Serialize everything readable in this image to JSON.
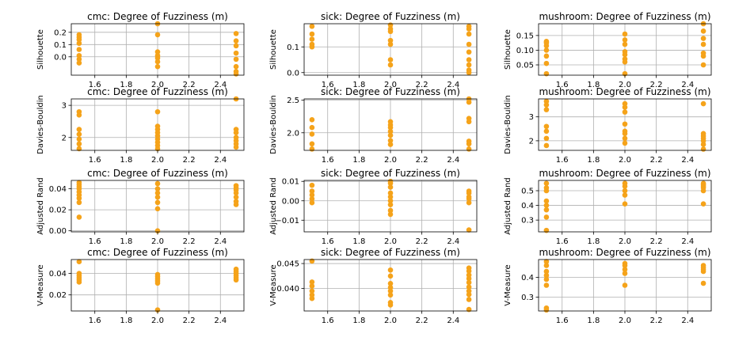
{
  "marker_color": "#f5a31a",
  "x_ticks": [
    1.6,
    1.8,
    2.0,
    2.2,
    2.4
  ],
  "xlim": [
    1.45,
    2.55
  ],
  "chart_data": [
    {
      "type": "scatter",
      "title": "cmc: Degree of Fuzziness (m)",
      "ylabel": "Silhouette",
      "ylim": [
        -0.15,
        0.27
      ],
      "y_ticks": [
        0.0,
        0.1,
        0.2
      ],
      "y_tick_labels": [
        "0.0",
        "0.1",
        "0.2"
      ],
      "points": [
        [
          1.5,
          -0.05
        ],
        [
          1.5,
          -0.02
        ],
        [
          1.5,
          0.01
        ],
        [
          1.5,
          0.06
        ],
        [
          1.5,
          0.11
        ],
        [
          1.5,
          0.14
        ],
        [
          1.5,
          0.16
        ],
        [
          1.5,
          0.18
        ],
        [
          2.0,
          -0.08
        ],
        [
          2.0,
          -0.04
        ],
        [
          2.0,
          -0.01
        ],
        [
          2.0,
          0.01
        ],
        [
          2.0,
          0.04
        ],
        [
          2.0,
          0.18
        ],
        [
          2.0,
          0.27
        ],
        [
          2.5,
          -0.14
        ],
        [
          2.5,
          -0.12
        ],
        [
          2.5,
          -0.08
        ],
        [
          2.5,
          -0.02
        ],
        [
          2.5,
          0.03
        ],
        [
          2.5,
          0.09
        ],
        [
          2.5,
          0.13
        ],
        [
          2.5,
          0.19
        ]
      ]
    },
    {
      "type": "scatter",
      "title": "sick: Degree of Fuzziness (m)",
      "ylabel": "Silhouette",
      "ylim": [
        -0.01,
        0.19
      ],
      "y_ticks": [
        0.0,
        0.1
      ],
      "y_tick_labels": [
        "0.0",
        "0.1"
      ],
      "points": [
        [
          1.5,
          0.1
        ],
        [
          1.5,
          0.11
        ],
        [
          1.5,
          0.13
        ],
        [
          1.5,
          0.15
        ],
        [
          1.5,
          0.18
        ],
        [
          2.0,
          0.03
        ],
        [
          2.0,
          0.05
        ],
        [
          2.0,
          0.11
        ],
        [
          2.0,
          0.125
        ],
        [
          2.0,
          0.16
        ],
        [
          2.0,
          0.17
        ],
        [
          2.0,
          0.185
        ],
        [
          2.5,
          0.0
        ],
        [
          2.5,
          0.01
        ],
        [
          2.5,
          0.03
        ],
        [
          2.5,
          0.05
        ],
        [
          2.5,
          0.08
        ],
        [
          2.5,
          0.11
        ],
        [
          2.5,
          0.15
        ],
        [
          2.5,
          0.17
        ],
        [
          2.5,
          0.18
        ]
      ]
    },
    {
      "type": "scatter",
      "title": "mushroom: Degree of Fuzziness (m)",
      "ylabel": "Silhouette",
      "ylim": [
        0.015,
        0.19
      ],
      "y_ticks": [
        0.05,
        0.1,
        0.15
      ],
      "y_tick_labels": [
        "0.05",
        "0.10",
        "0.15"
      ],
      "points": [
        [
          1.5,
          0.02
        ],
        [
          1.5,
          0.055
        ],
        [
          1.5,
          0.08
        ],
        [
          1.5,
          0.1
        ],
        [
          1.5,
          0.115
        ],
        [
          1.5,
          0.125
        ],
        [
          1.5,
          0.13
        ],
        [
          2.0,
          0.02
        ],
        [
          2.0,
          0.06
        ],
        [
          2.0,
          0.07
        ],
        [
          2.0,
          0.085
        ],
        [
          2.0,
          0.095
        ],
        [
          2.0,
          0.12
        ],
        [
          2.0,
          0.135
        ],
        [
          2.0,
          0.155
        ],
        [
          2.5,
          0.05
        ],
        [
          2.5,
          0.08
        ],
        [
          2.5,
          0.09
        ],
        [
          2.5,
          0.12
        ],
        [
          2.5,
          0.14
        ],
        [
          2.5,
          0.165
        ],
        [
          2.5,
          0.19
        ]
      ]
    },
    {
      "type": "scatter",
      "title": "cmc: Degree of Fuzziness (m)",
      "ylabel": "Davies-Bouldin",
      "ylim": [
        1.6,
        3.2
      ],
      "y_ticks": [
        2,
        3
      ],
      "y_tick_labels": [
        "2",
        "3"
      ],
      "points": [
        [
          1.5,
          1.65
        ],
        [
          1.5,
          1.8
        ],
        [
          1.5,
          1.95
        ],
        [
          1.5,
          2.1
        ],
        [
          1.5,
          2.25
        ],
        [
          1.5,
          2.7
        ],
        [
          1.5,
          2.8
        ],
        [
          2.0,
          1.65
        ],
        [
          2.0,
          1.75
        ],
        [
          2.0,
          1.85
        ],
        [
          2.0,
          1.95
        ],
        [
          2.0,
          2.05
        ],
        [
          2.0,
          2.15
        ],
        [
          2.0,
          2.25
        ],
        [
          2.0,
          2.35
        ],
        [
          2.0,
          2.8
        ],
        [
          2.5,
          1.7
        ],
        [
          2.5,
          1.8
        ],
        [
          2.5,
          1.9
        ],
        [
          2.5,
          2.0
        ],
        [
          2.5,
          2.15
        ],
        [
          2.5,
          2.25
        ],
        [
          2.5,
          3.2
        ]
      ]
    },
    {
      "type": "scatter",
      "title": "sick: Degree of Fuzziness (m)",
      "ylabel": "Davies-Bouldin",
      "ylim": [
        1.73,
        2.52
      ],
      "y_ticks": [
        2.0,
        2.5
      ],
      "y_tick_labels": [
        "2.0",
        "2.5"
      ],
      "points": [
        [
          1.5,
          1.75
        ],
        [
          1.5,
          1.83
        ],
        [
          1.5,
          1.98
        ],
        [
          1.5,
          2.08
        ],
        [
          1.5,
          2.2
        ],
        [
          2.0,
          1.82
        ],
        [
          2.0,
          1.88
        ],
        [
          2.0,
          1.96
        ],
        [
          2.0,
          2.02
        ],
        [
          2.0,
          2.08
        ],
        [
          2.0,
          2.12
        ],
        [
          2.0,
          2.17
        ],
        [
          2.5,
          1.75
        ],
        [
          2.5,
          1.83
        ],
        [
          2.5,
          1.87
        ],
        [
          2.5,
          2.17
        ],
        [
          2.5,
          2.22
        ],
        [
          2.5,
          2.47
        ],
        [
          2.5,
          2.52
        ]
      ]
    },
    {
      "type": "scatter",
      "title": "mushroom: Degree of Fuzziness (m)",
      "ylabel": "Davies-Bouldin",
      "ylim": [
        1.6,
        3.75
      ],
      "y_ticks": [
        2,
        3
      ],
      "y_tick_labels": [
        "2",
        "3"
      ],
      "points": [
        [
          1.5,
          1.8
        ],
        [
          1.5,
          2.1
        ],
        [
          1.5,
          2.4
        ],
        [
          1.5,
          2.6
        ],
        [
          1.5,
          3.3
        ],
        [
          1.5,
          3.5
        ],
        [
          1.5,
          3.65
        ],
        [
          2.0,
          1.9
        ],
        [
          2.0,
          2.1
        ],
        [
          2.0,
          2.3
        ],
        [
          2.0,
          2.4
        ],
        [
          2.0,
          2.7
        ],
        [
          2.0,
          3.2
        ],
        [
          2.0,
          3.4
        ],
        [
          2.0,
          3.55
        ],
        [
          2.5,
          1.65
        ],
        [
          2.5,
          1.85
        ],
        [
          2.5,
          2.0
        ],
        [
          2.5,
          2.1
        ],
        [
          2.5,
          2.2
        ],
        [
          2.5,
          2.3
        ],
        [
          2.5,
          3.55
        ]
      ]
    },
    {
      "type": "scatter",
      "title": "cmc: Degree of Fuzziness (m)",
      "ylabel": "Adjusted Rand",
      "ylim": [
        -0.001,
        0.048
      ],
      "y_ticks": [
        0.0,
        0.02,
        0.04
      ],
      "y_tick_labels": [
        "0.00",
        "0.02",
        "0.04"
      ],
      "points": [
        [
          1.5,
          0.013
        ],
        [
          1.5,
          0.027
        ],
        [
          1.5,
          0.031
        ],
        [
          1.5,
          0.034
        ],
        [
          1.5,
          0.037
        ],
        [
          1.5,
          0.04
        ],
        [
          1.5,
          0.042
        ],
        [
          1.5,
          0.044
        ],
        [
          1.5,
          0.046
        ],
        [
          2.0,
          0.0
        ],
        [
          2.0,
          0.021
        ],
        [
          2.0,
          0.027
        ],
        [
          2.0,
          0.032
        ],
        [
          2.0,
          0.036
        ],
        [
          2.0,
          0.04
        ],
        [
          2.0,
          0.045
        ],
        [
          2.5,
          0.025
        ],
        [
          2.5,
          0.028
        ],
        [
          2.5,
          0.032
        ],
        [
          2.5,
          0.036
        ],
        [
          2.5,
          0.039
        ],
        [
          2.5,
          0.041
        ],
        [
          2.5,
          0.043
        ]
      ]
    },
    {
      "type": "scatter",
      "title": "sick: Degree of Fuzziness (m)",
      "ylabel": "Adjusted Rand",
      "ylim": [
        -0.016,
        0.0105
      ],
      "y_ticks": [
        -0.01,
        0.0,
        0.01
      ],
      "y_tick_labels": [
        "−0.01",
        "0.00",
        "0.01"
      ],
      "points": [
        [
          1.5,
          -0.001
        ],
        [
          1.5,
          0.001
        ],
        [
          1.5,
          0.003
        ],
        [
          1.5,
          0.005
        ],
        [
          1.5,
          0.008
        ],
        [
          2.0,
          -0.007
        ],
        [
          2.0,
          -0.005
        ],
        [
          2.0,
          -0.002
        ],
        [
          2.0,
          0.0
        ],
        [
          2.0,
          0.002
        ],
        [
          2.0,
          0.004
        ],
        [
          2.0,
          0.007
        ],
        [
          2.0,
          0.009
        ],
        [
          2.0,
          0.01
        ],
        [
          2.5,
          -0.015
        ],
        [
          2.5,
          -0.001
        ],
        [
          2.5,
          0.001
        ],
        [
          2.5,
          0.002
        ],
        [
          2.5,
          0.004
        ],
        [
          2.5,
          0.005
        ]
      ]
    },
    {
      "type": "scatter",
      "title": "mushroom: Degree of Fuzziness (m)",
      "ylabel": "Adjusted Rand",
      "ylim": [
        0.22,
        0.57
      ],
      "y_ticks": [
        0.3,
        0.4,
        0.5
      ],
      "y_tick_labels": [
        "0.3",
        "0.4",
        "0.5"
      ],
      "points": [
        [
          1.5,
          0.23
        ],
        [
          1.5,
          0.32
        ],
        [
          1.5,
          0.37
        ],
        [
          1.5,
          0.4
        ],
        [
          1.5,
          0.43
        ],
        [
          1.5,
          0.5
        ],
        [
          1.5,
          0.52
        ],
        [
          1.5,
          0.55
        ],
        [
          2.0,
          0.41
        ],
        [
          2.0,
          0.47
        ],
        [
          2.0,
          0.5
        ],
        [
          2.0,
          0.53
        ],
        [
          2.0,
          0.55
        ],
        [
          2.5,
          0.41
        ],
        [
          2.5,
          0.5
        ],
        [
          2.5,
          0.52
        ],
        [
          2.5,
          0.53
        ],
        [
          2.5,
          0.54
        ],
        [
          2.5,
          0.55
        ]
      ]
    },
    {
      "type": "scatter",
      "title": "cmc: Degree of Fuzziness (m)",
      "ylabel": "V-Measure",
      "ylim": [
        0.005,
        0.053
      ],
      "y_ticks": [
        0.02,
        0.04
      ],
      "y_tick_labels": [
        "0.02",
        "0.04"
      ],
      "points": [
        [
          1.5,
          0.032
        ],
        [
          1.5,
          0.034
        ],
        [
          1.5,
          0.036
        ],
        [
          1.5,
          0.038
        ],
        [
          1.5,
          0.04
        ],
        [
          1.5,
          0.051
        ],
        [
          2.0,
          0.006
        ],
        [
          2.0,
          0.031
        ],
        [
          2.0,
          0.033
        ],
        [
          2.0,
          0.035
        ],
        [
          2.0,
          0.037
        ],
        [
          2.0,
          0.039
        ],
        [
          2.5,
          0.034
        ],
        [
          2.5,
          0.036
        ],
        [
          2.5,
          0.038
        ],
        [
          2.5,
          0.04
        ],
        [
          2.5,
          0.042
        ],
        [
          2.5,
          0.044
        ]
      ]
    },
    {
      "type": "scatter",
      "title": "sick: Degree of Fuzziness (m)",
      "ylabel": "V-Measure",
      "ylim": [
        0.0355,
        0.0458
      ],
      "y_ticks": [
        0.04,
        0.045
      ],
      "y_tick_labels": [
        "0.040",
        "0.045"
      ],
      "points": [
        [
          1.5,
          0.038
        ],
        [
          1.5,
          0.0387
        ],
        [
          1.5,
          0.0395
        ],
        [
          1.5,
          0.0405
        ],
        [
          1.5,
          0.0413
        ],
        [
          1.5,
          0.0455
        ],
        [
          2.0,
          0.0367
        ],
        [
          2.0,
          0.0372
        ],
        [
          2.0,
          0.0387
        ],
        [
          2.0,
          0.0395
        ],
        [
          2.0,
          0.0402
        ],
        [
          2.0,
          0.041
        ],
        [
          2.0,
          0.0425
        ],
        [
          2.0,
          0.0437
        ],
        [
          2.5,
          0.0358
        ],
        [
          2.5,
          0.0378
        ],
        [
          2.5,
          0.0388
        ],
        [
          2.5,
          0.0395
        ],
        [
          2.5,
          0.0403
        ],
        [
          2.5,
          0.0412
        ],
        [
          2.5,
          0.042
        ],
        [
          2.5,
          0.0427
        ],
        [
          2.5,
          0.0435
        ],
        [
          2.5,
          0.0441
        ]
      ]
    },
    {
      "type": "scatter",
      "title": "mushroom: Degree of Fuzziness (m)",
      "ylabel": "V-Measure",
      "ylim": [
        0.23,
        0.49
      ],
      "y_ticks": [
        0.3,
        0.4
      ],
      "y_tick_labels": [
        "0.3",
        "0.4"
      ],
      "points": [
        [
          1.5,
          0.235
        ],
        [
          1.5,
          0.245
        ],
        [
          1.5,
          0.36
        ],
        [
          1.5,
          0.39
        ],
        [
          1.5,
          0.41
        ],
        [
          1.5,
          0.43
        ],
        [
          1.5,
          0.46
        ],
        [
          1.5,
          0.48
        ],
        [
          2.0,
          0.36
        ],
        [
          2.0,
          0.42
        ],
        [
          2.0,
          0.44
        ],
        [
          2.0,
          0.46
        ],
        [
          2.0,
          0.47
        ],
        [
          2.5,
          0.37
        ],
        [
          2.5,
          0.43
        ],
        [
          2.5,
          0.44
        ],
        [
          2.5,
          0.45
        ],
        [
          2.5,
          0.46
        ]
      ]
    }
  ]
}
